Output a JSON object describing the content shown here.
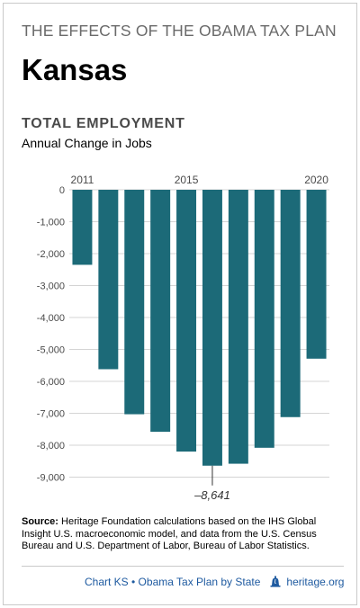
{
  "header": {
    "title": "THE EFFECTS OF THE OBAMA TAX PLAN",
    "state": "Kansas"
  },
  "chart_data": {
    "type": "bar",
    "title": "TOTAL EMPLOYMENT",
    "subtitle": "Annual Change in Jobs",
    "categories": [
      "2011",
      "2012",
      "2013",
      "2014",
      "2015",
      "2016",
      "2017",
      "2018",
      "2019",
      "2020"
    ],
    "values": [
      -2350,
      -5620,
      -7030,
      -7580,
      -8200,
      -8641,
      -8580,
      -8080,
      -7120,
      -5290
    ],
    "x_tick_labels": [
      "2011",
      "2015",
      "2020"
    ],
    "y_ticks": [
      "0",
      "-1,000",
      "-2,000",
      "-3,000",
      "-4,000",
      "-5,000",
      "-6,000",
      "-7,000",
      "-8,000",
      "-9,000"
    ],
    "ylim": [
      -9500,
      0
    ],
    "grid": true,
    "annotation": {
      "category": "2016",
      "text": "–8,641"
    },
    "bar_color": "#1c6a78",
    "grid_color": "#d4d4d4"
  },
  "source": {
    "label": "Source:",
    "text": " Heritage Foundation calculations based on the IHS Global Insight U.S. macroeconomic model, and data from the U.S. Census Bureau and U.S. Department of Labor, Bureau of Labor Statistics."
  },
  "footer": {
    "chart_id": "Chart KS • Obama Tax Plan by State",
    "site": "heritage.org",
    "icon": "liberty-bell-icon",
    "link_color": "#1e5aa0"
  }
}
